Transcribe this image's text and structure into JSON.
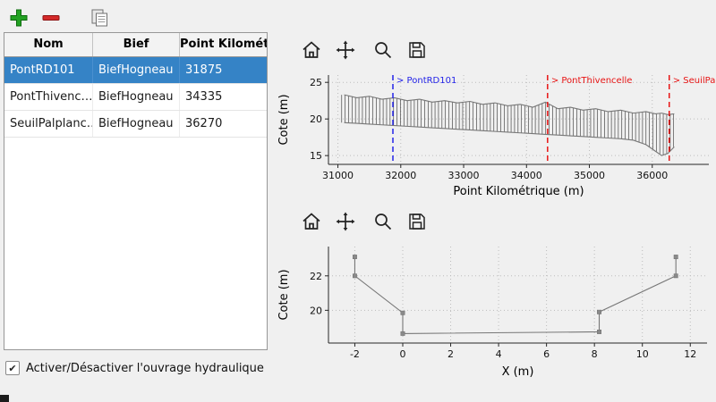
{
  "main_toolbar": {
    "buttons": [
      {
        "name": "add",
        "icon": "plus-icon",
        "color": "#23a123"
      },
      {
        "name": "remove",
        "icon": "minus-icon",
        "color": "#d42a2a"
      },
      {
        "name": "duplicate",
        "icon": "copy-icon",
        "color": "#8d8d8d"
      }
    ]
  },
  "table": {
    "columns": [
      "Nom",
      "Bief",
      "Point Kilométrique"
    ],
    "rows": [
      [
        "PontRD101",
        "BiefHogneau",
        "31875"
      ],
      [
        "PontThivenc…",
        "BiefHogneau",
        "34335"
      ],
      [
        "SeuilPalplanc…",
        "BiefHogneau",
        "36270"
      ]
    ],
    "selected_index": 0,
    "selection_color": "#3583c6"
  },
  "checkbox": {
    "label": "Activer/Désactiver l'ouvrage hydraulique",
    "checked": true
  },
  "chart_toolbar_icons": [
    "home-icon",
    "pan-icon",
    "zoom-icon",
    "save-icon"
  ],
  "chart_data": [
    {
      "type": "line",
      "title": "",
      "xlabel": "Point Kilométrique (m)",
      "ylabel": "Cote (m)",
      "xlim": [
        30850,
        36900
      ],
      "ylim": [
        13.8,
        26
      ],
      "xticks": [
        31000,
        32000,
        33000,
        34000,
        35000,
        36000
      ],
      "yticks": [
        15,
        20,
        25
      ],
      "grid": true,
      "vlines": [
        {
          "x": 31875,
          "color": "#2424e8",
          "label": "> PontRD101"
        },
        {
          "x": 34335,
          "color": "#e81414",
          "label": "> PontThivencelle"
        },
        {
          "x": 36270,
          "color": "#e81414",
          "label": "> SeuilPalplanches"
        }
      ],
      "hatch": {
        "between": [
          "berge",
          "fond"
        ],
        "from": 31060,
        "to": 36340,
        "interval": 55,
        "color": "#4a4a4a"
      },
      "series": [
        {
          "name": "berge",
          "x": [
            31100,
            31300,
            31500,
            31700,
            31900,
            32100,
            32300,
            32500,
            32700,
            32900,
            33100,
            33300,
            33500,
            33700,
            33900,
            34100,
            34300,
            34500,
            34700,
            34900,
            35100,
            35300,
            35500,
            35700,
            35900,
            36050,
            36150,
            36250,
            36350
          ],
          "y": [
            23.3,
            22.9,
            23.1,
            22.7,
            22.9,
            22.5,
            22.7,
            22.3,
            22.5,
            22.2,
            22.4,
            22.0,
            22.2,
            21.8,
            22.0,
            21.6,
            22.3,
            21.4,
            21.6,
            21.2,
            21.4,
            21.0,
            21.2,
            20.8,
            21.0,
            20.7,
            20.8,
            20.6,
            20.7
          ]
        },
        {
          "name": "fond",
          "x": [
            31100,
            31300,
            31500,
            31700,
            31900,
            32100,
            32300,
            32500,
            32700,
            32900,
            33100,
            33300,
            33500,
            33700,
            33900,
            34100,
            34300,
            34500,
            34700,
            34900,
            35100,
            35300,
            35500,
            35700,
            35900,
            36050,
            36150,
            36250,
            36350
          ],
          "y": [
            19.5,
            19.4,
            19.3,
            19.2,
            19.1,
            19.0,
            18.9,
            18.8,
            18.7,
            18.6,
            18.5,
            18.4,
            18.3,
            18.2,
            18.1,
            18.0,
            17.9,
            17.8,
            17.7,
            17.6,
            17.5,
            17.4,
            17.3,
            17.1,
            16.5,
            15.6,
            15.0,
            15.3,
            16.2
          ]
        }
      ]
    },
    {
      "type": "line",
      "title": "",
      "xlabel": "X (m)",
      "ylabel": "Cote (m)",
      "xlim": [
        -3.1,
        12.7
      ],
      "ylim": [
        18.1,
        23.7
      ],
      "xticks": [
        -2,
        0,
        2,
        4,
        6,
        8,
        10,
        12
      ],
      "yticks": [
        20,
        22
      ],
      "grid": true,
      "vlines": [],
      "series": [
        {
          "name": "section",
          "marker": true,
          "x": [
            -2,
            -2,
            0,
            0,
            8.2,
            8.2,
            11.4,
            11.4
          ],
          "y": [
            23.1,
            22.0,
            19.85,
            18.65,
            18.75,
            19.9,
            22.0,
            23.1
          ]
        }
      ]
    }
  ]
}
